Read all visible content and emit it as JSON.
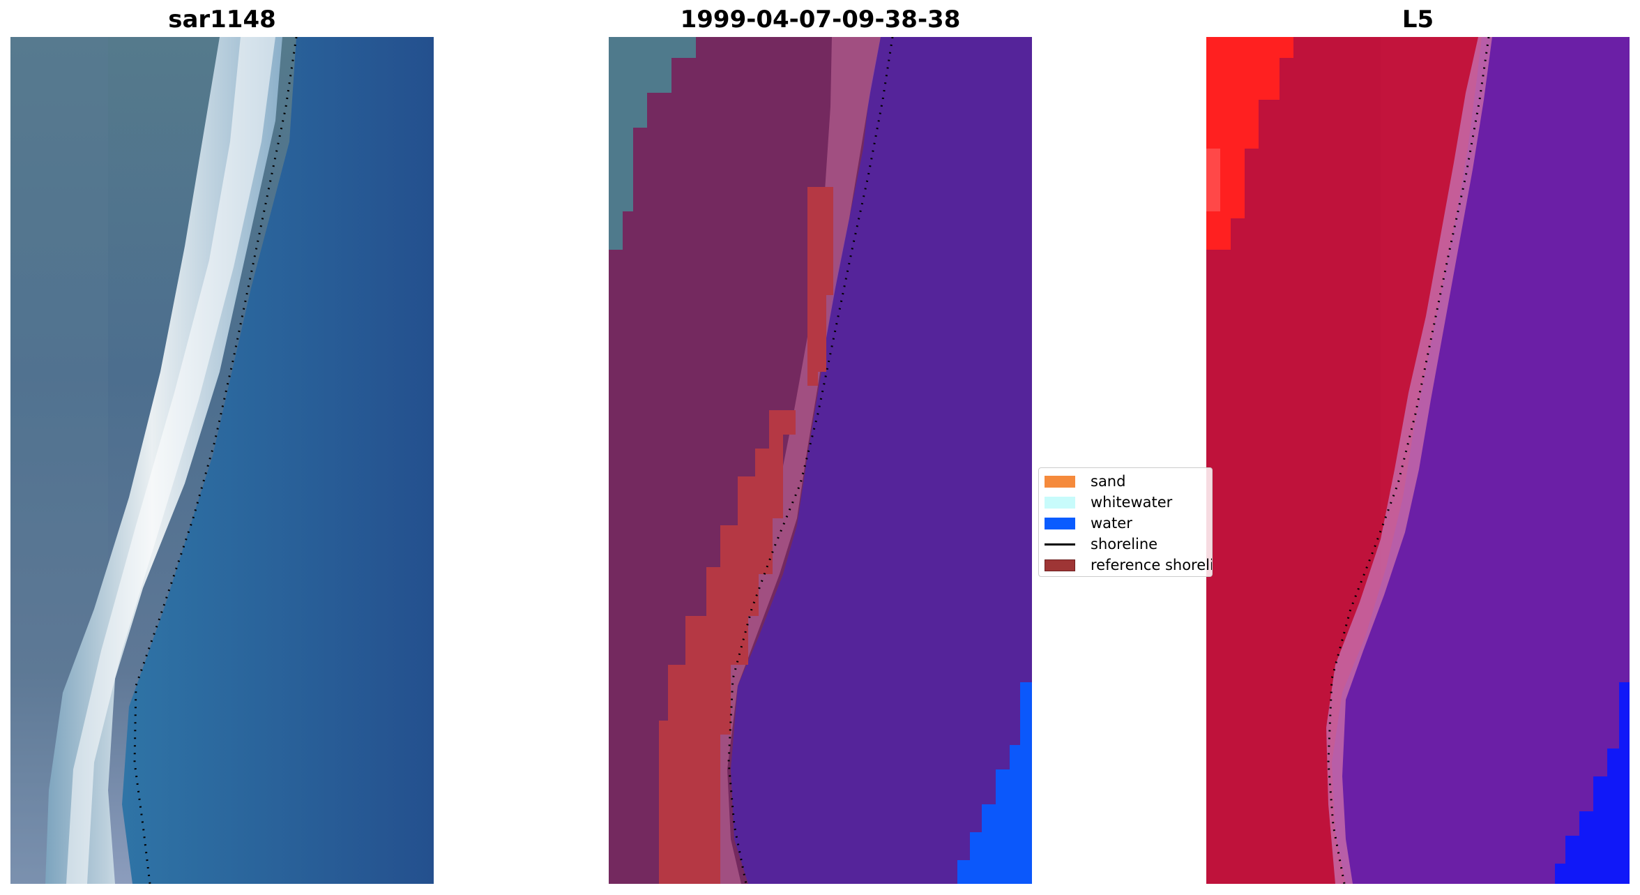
{
  "panels": [
    {
      "title": "sar1148"
    },
    {
      "title": "1999-04-07-09-38-38"
    },
    {
      "title": "L5"
    }
  ],
  "legend": {
    "items": [
      {
        "label": "sand",
        "kind": "patch",
        "color": "#f58a3c"
      },
      {
        "label": "whitewater",
        "kind": "patch",
        "color": "#c8fbfb"
      },
      {
        "label": "water",
        "kind": "patch",
        "color": "#0a5cff"
      },
      {
        "label": "shoreline",
        "kind": "line",
        "color": "#000000"
      },
      {
        "label": "reference shoreline",
        "kind": "patch",
        "color": "#9e3535"
      }
    ]
  },
  "colors": {
    "rgb_water": "#2a6aa3",
    "rgb_land": "#4f7088",
    "rgb_whitewater": "#dce8ee",
    "class_land": "#6d2358",
    "class_water": "#55249a",
    "class_teal": "#4f7a8c",
    "class_shoreline_band": "#b53844",
    "class_water_overlay": "#0b58fb",
    "index_land": "#c2143c",
    "index_water": "#6b1fa6",
    "index_bright": "#ff2020",
    "index_blue": "#1018f8"
  }
}
